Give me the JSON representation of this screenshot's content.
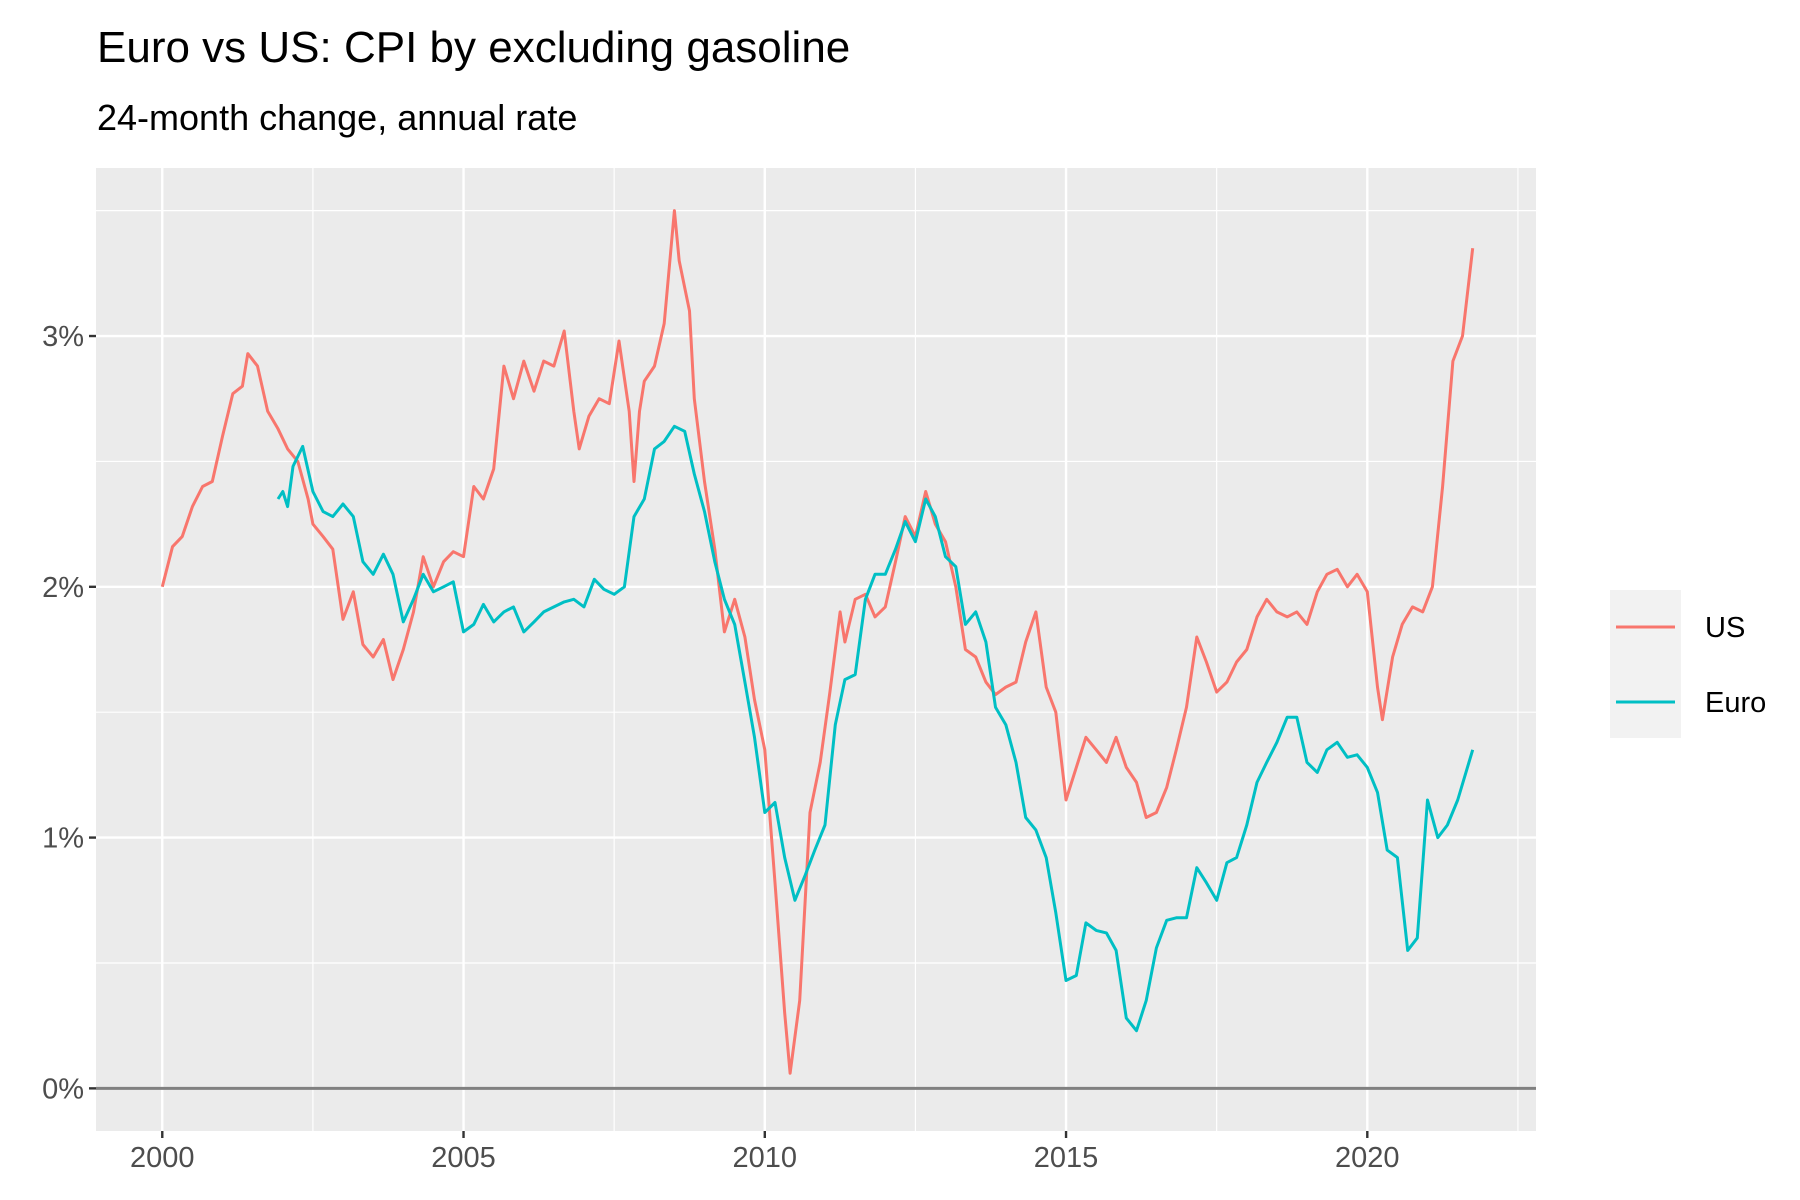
{
  "chart_data": {
    "type": "line",
    "title": "Euro vs US: CPI by excluding gasoline",
    "subtitle": "24-month change, annual rate",
    "xlabel": "",
    "ylabel": "",
    "xlim": [
      1998.9,
      2022.8
    ],
    "ylim": [
      -0.17,
      3.67
    ],
    "x_ticks": [
      2000,
      2005,
      2010,
      2015,
      2020
    ],
    "x_tick_labels": [
      "2000",
      "2005",
      "2010",
      "2015",
      "2020"
    ],
    "y_ticks": [
      0,
      1,
      2,
      3
    ],
    "y_tick_labels": [
      "0%",
      "1%",
      "2%",
      "3%"
    ],
    "hline": 0,
    "grid": true,
    "legend_position": "right",
    "series": [
      {
        "name": "US",
        "color": "#F8766D",
        "points": [
          [
            2000.0,
            2.0
          ],
          [
            2000.17,
            2.16
          ],
          [
            2000.33,
            2.2
          ],
          [
            2000.5,
            2.32
          ],
          [
            2000.67,
            2.4
          ],
          [
            2000.83,
            2.42
          ],
          [
            2001.0,
            2.6
          ],
          [
            2001.17,
            2.77
          ],
          [
            2001.33,
            2.8
          ],
          [
            2001.42,
            2.93
          ],
          [
            2001.58,
            2.88
          ],
          [
            2001.75,
            2.7
          ],
          [
            2001.92,
            2.63
          ],
          [
            2002.08,
            2.55
          ],
          [
            2002.25,
            2.5
          ],
          [
            2002.42,
            2.35
          ],
          [
            2002.5,
            2.25
          ],
          [
            2002.67,
            2.2
          ],
          [
            2002.83,
            2.15
          ],
          [
            2003.0,
            1.87
          ],
          [
            2003.17,
            1.98
          ],
          [
            2003.33,
            1.77
          ],
          [
            2003.5,
            1.72
          ],
          [
            2003.67,
            1.79
          ],
          [
            2003.83,
            1.63
          ],
          [
            2004.0,
            1.75
          ],
          [
            2004.17,
            1.9
          ],
          [
            2004.33,
            2.12
          ],
          [
            2004.5,
            2.0
          ],
          [
            2004.67,
            2.1
          ],
          [
            2004.83,
            2.14
          ],
          [
            2005.0,
            2.12
          ],
          [
            2005.17,
            2.4
          ],
          [
            2005.33,
            2.35
          ],
          [
            2005.5,
            2.47
          ],
          [
            2005.67,
            2.88
          ],
          [
            2005.83,
            2.75
          ],
          [
            2006.0,
            2.9
          ],
          [
            2006.17,
            2.78
          ],
          [
            2006.33,
            2.9
          ],
          [
            2006.5,
            2.88
          ],
          [
            2006.67,
            3.02
          ],
          [
            2006.83,
            2.7
          ],
          [
            2006.92,
            2.55
          ],
          [
            2007.08,
            2.68
          ],
          [
            2007.25,
            2.75
          ],
          [
            2007.42,
            2.73
          ],
          [
            2007.58,
            2.98
          ],
          [
            2007.75,
            2.7
          ],
          [
            2007.83,
            2.42
          ],
          [
            2007.92,
            2.7
          ],
          [
            2008.0,
            2.82
          ],
          [
            2008.17,
            2.88
          ],
          [
            2008.33,
            3.05
          ],
          [
            2008.5,
            3.5
          ],
          [
            2008.58,
            3.3
          ],
          [
            2008.75,
            3.1
          ],
          [
            2008.83,
            2.75
          ],
          [
            2009.0,
            2.42
          ],
          [
            2009.17,
            2.15
          ],
          [
            2009.33,
            1.82
          ],
          [
            2009.5,
            1.95
          ],
          [
            2009.67,
            1.8
          ],
          [
            2009.83,
            1.55
          ],
          [
            2010.0,
            1.35
          ],
          [
            2010.17,
            0.82
          ],
          [
            2010.33,
            0.3
          ],
          [
            2010.42,
            0.06
          ],
          [
            2010.58,
            0.35
          ],
          [
            2010.75,
            1.1
          ],
          [
            2010.92,
            1.3
          ],
          [
            2011.08,
            1.58
          ],
          [
            2011.25,
            1.9
          ],
          [
            2011.33,
            1.78
          ],
          [
            2011.5,
            1.95
          ],
          [
            2011.67,
            1.97
          ],
          [
            2011.83,
            1.88
          ],
          [
            2012.0,
            1.92
          ],
          [
            2012.17,
            2.1
          ],
          [
            2012.33,
            2.28
          ],
          [
            2012.5,
            2.2
          ],
          [
            2012.67,
            2.38
          ],
          [
            2012.83,
            2.25
          ],
          [
            2013.0,
            2.18
          ],
          [
            2013.17,
            2.0
          ],
          [
            2013.33,
            1.75
          ],
          [
            2013.5,
            1.72
          ],
          [
            2013.67,
            1.62
          ],
          [
            2013.83,
            1.57
          ],
          [
            2014.0,
            1.6
          ],
          [
            2014.17,
            1.62
          ],
          [
            2014.33,
            1.78
          ],
          [
            2014.5,
            1.9
          ],
          [
            2014.67,
            1.6
          ],
          [
            2014.83,
            1.5
          ],
          [
            2015.0,
            1.15
          ],
          [
            2015.17,
            1.28
          ],
          [
            2015.33,
            1.4
          ],
          [
            2015.5,
            1.35
          ],
          [
            2015.67,
            1.3
          ],
          [
            2015.83,
            1.4
          ],
          [
            2016.0,
            1.28
          ],
          [
            2016.17,
            1.22
          ],
          [
            2016.33,
            1.08
          ],
          [
            2016.5,
            1.1
          ],
          [
            2016.67,
            1.2
          ],
          [
            2016.83,
            1.35
          ],
          [
            2017.0,
            1.52
          ],
          [
            2017.17,
            1.8
          ],
          [
            2017.33,
            1.7
          ],
          [
            2017.5,
            1.58
          ],
          [
            2017.67,
            1.62
          ],
          [
            2017.83,
            1.7
          ],
          [
            2018.0,
            1.75
          ],
          [
            2018.17,
            1.88
          ],
          [
            2018.33,
            1.95
          ],
          [
            2018.5,
            1.9
          ],
          [
            2018.67,
            1.88
          ],
          [
            2018.83,
            1.9
          ],
          [
            2019.0,
            1.85
          ],
          [
            2019.17,
            1.98
          ],
          [
            2019.33,
            2.05
          ],
          [
            2019.5,
            2.07
          ],
          [
            2019.67,
            2.0
          ],
          [
            2019.83,
            2.05
          ],
          [
            2020.0,
            1.98
          ],
          [
            2020.17,
            1.6
          ],
          [
            2020.25,
            1.47
          ],
          [
            2020.42,
            1.72
          ],
          [
            2020.58,
            1.85
          ],
          [
            2020.75,
            1.92
          ],
          [
            2020.92,
            1.9
          ],
          [
            2021.08,
            2.0
          ],
          [
            2021.25,
            2.4
          ],
          [
            2021.42,
            2.9
          ],
          [
            2021.58,
            3.0
          ],
          [
            2021.75,
            3.35
          ]
        ]
      },
      {
        "name": "Euro",
        "color": "#00BFC4",
        "points": [
          [
            2001.92,
            2.35
          ],
          [
            2002.0,
            2.38
          ],
          [
            2002.08,
            2.32
          ],
          [
            2002.17,
            2.48
          ],
          [
            2002.33,
            2.56
          ],
          [
            2002.5,
            2.38
          ],
          [
            2002.67,
            2.3
          ],
          [
            2002.83,
            2.28
          ],
          [
            2003.0,
            2.33
          ],
          [
            2003.17,
            2.28
          ],
          [
            2003.33,
            2.1
          ],
          [
            2003.5,
            2.05
          ],
          [
            2003.67,
            2.13
          ],
          [
            2003.83,
            2.05
          ],
          [
            2004.0,
            1.86
          ],
          [
            2004.17,
            1.95
          ],
          [
            2004.33,
            2.05
          ],
          [
            2004.5,
            1.98
          ],
          [
            2004.67,
            2.0
          ],
          [
            2004.83,
            2.02
          ],
          [
            2005.0,
            1.82
          ],
          [
            2005.17,
            1.85
          ],
          [
            2005.33,
            1.93
          ],
          [
            2005.5,
            1.86
          ],
          [
            2005.67,
            1.9
          ],
          [
            2005.83,
            1.92
          ],
          [
            2006.0,
            1.82
          ],
          [
            2006.17,
            1.86
          ],
          [
            2006.33,
            1.9
          ],
          [
            2006.5,
            1.92
          ],
          [
            2006.67,
            1.94
          ],
          [
            2006.83,
            1.95
          ],
          [
            2007.0,
            1.92
          ],
          [
            2007.17,
            2.03
          ],
          [
            2007.33,
            1.99
          ],
          [
            2007.5,
            1.97
          ],
          [
            2007.67,
            2.0
          ],
          [
            2007.83,
            2.28
          ],
          [
            2008.0,
            2.35
          ],
          [
            2008.17,
            2.55
          ],
          [
            2008.33,
            2.58
          ],
          [
            2008.5,
            2.64
          ],
          [
            2008.67,
            2.62
          ],
          [
            2008.83,
            2.45
          ],
          [
            2009.0,
            2.3
          ],
          [
            2009.17,
            2.1
          ],
          [
            2009.33,
            1.95
          ],
          [
            2009.5,
            1.85
          ],
          [
            2009.67,
            1.62
          ],
          [
            2009.83,
            1.4
          ],
          [
            2010.0,
            1.1
          ],
          [
            2010.17,
            1.14
          ],
          [
            2010.33,
            0.92
          ],
          [
            2010.5,
            0.75
          ],
          [
            2010.67,
            0.85
          ],
          [
            2010.83,
            0.95
          ],
          [
            2011.0,
            1.05
          ],
          [
            2011.17,
            1.45
          ],
          [
            2011.33,
            1.63
          ],
          [
            2011.5,
            1.65
          ],
          [
            2011.67,
            1.95
          ],
          [
            2011.83,
            2.05
          ],
          [
            2012.0,
            2.05
          ],
          [
            2012.17,
            2.15
          ],
          [
            2012.33,
            2.26
          ],
          [
            2012.5,
            2.18
          ],
          [
            2012.67,
            2.35
          ],
          [
            2012.83,
            2.28
          ],
          [
            2013.0,
            2.12
          ],
          [
            2013.17,
            2.08
          ],
          [
            2013.33,
            1.85
          ],
          [
            2013.5,
            1.9
          ],
          [
            2013.67,
            1.78
          ],
          [
            2013.83,
            1.52
          ],
          [
            2014.0,
            1.45
          ],
          [
            2014.17,
            1.3
          ],
          [
            2014.33,
            1.08
          ],
          [
            2014.5,
            1.03
          ],
          [
            2014.67,
            0.92
          ],
          [
            2014.83,
            0.7
          ],
          [
            2015.0,
            0.43
          ],
          [
            2015.17,
            0.45
          ],
          [
            2015.33,
            0.66
          ],
          [
            2015.5,
            0.63
          ],
          [
            2015.67,
            0.62
          ],
          [
            2015.83,
            0.55
          ],
          [
            2016.0,
            0.28
          ],
          [
            2016.17,
            0.23
          ],
          [
            2016.33,
            0.35
          ],
          [
            2016.5,
            0.56
          ],
          [
            2016.67,
            0.67
          ],
          [
            2016.83,
            0.68
          ],
          [
            2017.0,
            0.68
          ],
          [
            2017.17,
            0.88
          ],
          [
            2017.33,
            0.82
          ],
          [
            2017.5,
            0.75
          ],
          [
            2017.67,
            0.9
          ],
          [
            2017.83,
            0.92
          ],
          [
            2018.0,
            1.05
          ],
          [
            2018.17,
            1.22
          ],
          [
            2018.33,
            1.3
          ],
          [
            2018.5,
            1.38
          ],
          [
            2018.67,
            1.48
          ],
          [
            2018.83,
            1.48
          ],
          [
            2019.0,
            1.3
          ],
          [
            2019.17,
            1.26
          ],
          [
            2019.33,
            1.35
          ],
          [
            2019.5,
            1.38
          ],
          [
            2019.67,
            1.32
          ],
          [
            2019.83,
            1.33
          ],
          [
            2020.0,
            1.28
          ],
          [
            2020.17,
            1.18
          ],
          [
            2020.33,
            0.95
          ],
          [
            2020.5,
            0.92
          ],
          [
            2020.67,
            0.55
          ],
          [
            2020.83,
            0.6
          ],
          [
            2021.0,
            1.15
          ],
          [
            2021.17,
            1.0
          ],
          [
            2021.33,
            1.05
          ],
          [
            2021.5,
            1.15
          ],
          [
            2021.75,
            1.35
          ]
        ]
      }
    ]
  }
}
